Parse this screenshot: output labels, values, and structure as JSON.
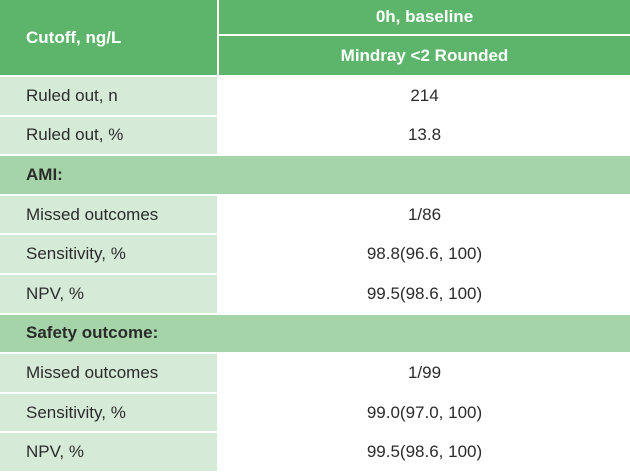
{
  "header": {
    "row_label": "Cutoff, ng/L",
    "group": "0h, baseline",
    "column": "Mindray <2 Rounded"
  },
  "rows": [
    {
      "label": "Ruled out, n",
      "value": "214"
    },
    {
      "label": "Ruled out, %",
      "value": "13.8"
    },
    {
      "section": "AMI:"
    },
    {
      "label": "Missed outcomes",
      "value": "1/86"
    },
    {
      "label": "Sensitivity, %",
      "value": "98.8(96.6, 100)"
    },
    {
      "label": "NPV, %",
      "value": "99.5(98.6, 100)"
    },
    {
      "section": "Safety outcome:"
    },
    {
      "label": "Missed outcomes",
      "value": "1/99"
    },
    {
      "label": "Sensitivity, %",
      "value": "99.0(97.0, 100)"
    },
    {
      "label": "NPV, %",
      "value": "99.5(98.6, 100)"
    }
  ]
}
